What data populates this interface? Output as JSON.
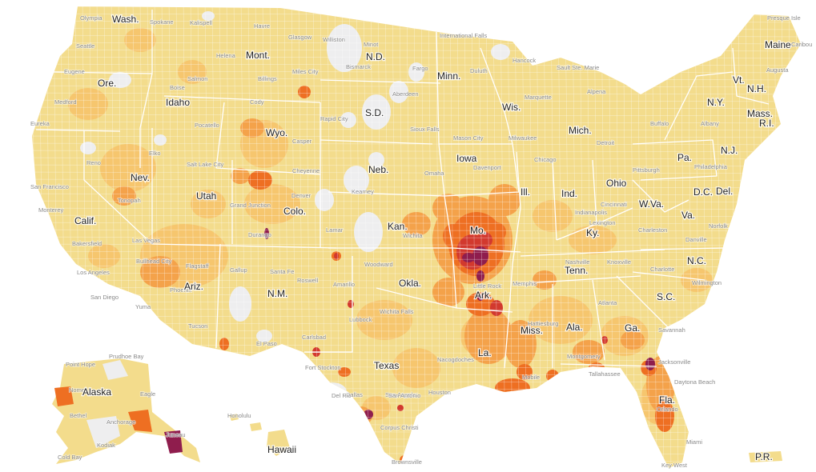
{
  "palette": {
    "level1": "#f3dc8c",
    "level2": "#f6c66e",
    "level3": "#f4a24a",
    "level4": "#ee6f22",
    "level5": "#d2392e",
    "level6": "#8f1d4d",
    "no_data": "#eeeeef",
    "state_border": "#ffffff"
  },
  "state_labels": [
    "Wash.",
    "Ore.",
    "Calif.",
    "Nev.",
    "Idaho",
    "Mont.",
    "Wyo.",
    "Utah",
    "Ariz.",
    "Colo.",
    "N.M.",
    "N.D.",
    "S.D.",
    "Neb.",
    "Kan.",
    "Okla.",
    "Texas",
    "Minn.",
    "Iowa",
    "Mo.",
    "Ark.",
    "La.",
    "Wis.",
    "Ill.",
    "Mich.",
    "Ind.",
    "Ohio",
    "Ky.",
    "Tenn.",
    "Miss.",
    "Ala.",
    "Ga.",
    "Fla.",
    "S.C.",
    "N.C.",
    "Va.",
    "W.Va.",
    "Pa.",
    "N.Y.",
    "Vt.",
    "N.H.",
    "Maine",
    "Mass.",
    "R.I.",
    "N.J.",
    "Del.",
    "D.C.",
    "Alaska",
    "Hawaii",
    "P.R."
  ],
  "city_labels": [
    "Olympia",
    "Spokane",
    "Kalispell",
    "Havre",
    "Glasgow",
    "Williston",
    "International Falls",
    "Presque Isle",
    "Caribou",
    "Seattle",
    "Eugene",
    "Medford",
    "Eureka",
    "Boise",
    "Salmon",
    "Helena",
    "Billings",
    "Miles City",
    "Minot",
    "Bismarck",
    "Fargo",
    "Duluth",
    "Hancock",
    "Sault Ste. Marie",
    "Alpena",
    "Marquette",
    "Aberdeen",
    "Rapid City",
    "Sioux Falls",
    "Mason City",
    "Milwaukee",
    "Detroit",
    "Buffalo",
    "Albany",
    "Augusta",
    "Pocatello",
    "Cody",
    "Casper",
    "Cheyenne",
    "Salt Lake City",
    "Elko",
    "Reno",
    "San Francisco",
    "Monterey",
    "Bakersfield",
    "Los Angeles",
    "San Diego",
    "Yuma",
    "Las Vegas",
    "Tonopah",
    "Bullhead City",
    "Flagstaff",
    "Phoenix",
    "Tucson",
    "Gallup",
    "Santa Fe",
    "Roswell",
    "Grand Junction",
    "Durango",
    "Denver",
    "Lamar",
    "Omaha",
    "Kearney",
    "Davenport",
    "Chicago",
    "Indianapolis",
    "Cincinnati",
    "Pittsburgh",
    "Philadelphia",
    "Wichita",
    "Woodward",
    "Amarillo",
    "Lubbock",
    "Wichita Falls",
    "Dallas",
    "San Angelo",
    "El Paso",
    "Carlsbad",
    "Fort Stockton",
    "Del Rio",
    "San Antonio",
    "Houston",
    "Corpus Christi",
    "Brownsville",
    "Nacogdoches",
    "Memphis",
    "Little Rock",
    "Hattiesburg",
    "Mobile",
    "Montgomery",
    "Atlanta",
    "Knoxville",
    "Nashville",
    "Lexington",
    "Charleston",
    "Charlotte",
    "Wilmington",
    "Danville",
    "Norfolk",
    "Savannah",
    "Jacksonville",
    "Tallahassee",
    "Orlando",
    "Miami",
    "Key West",
    "Daytona Beach",
    "Prudhoe Bay",
    "Point Hope",
    "Nome",
    "Eagle",
    "Bethel",
    "Anchorage",
    "Kodiak",
    "Juneau",
    "Cold Bay",
    "Honolulu"
  ]
}
